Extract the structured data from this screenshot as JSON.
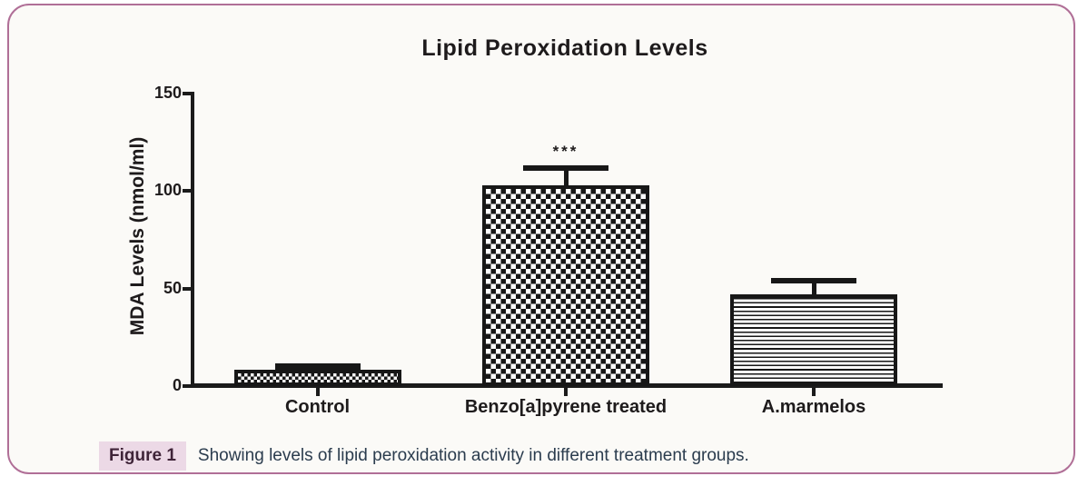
{
  "caption": {
    "label": "Figure 1",
    "text": "Showing levels of lipid peroxidation activity in different treatment groups."
  },
  "colors": {
    "panel_border": "#b06f97",
    "caption_highlight": "#ecd9e6",
    "caption_label_text": "#3f2438",
    "caption_text": "#2b3c4e",
    "ink": "#1b1b1b"
  },
  "chart_data": {
    "type": "bar",
    "title": "Lipid Peroxidation Levels",
    "xlabel": "",
    "ylabel": "MDA Levels (nmol/ml)",
    "categories": [
      "Control",
      "Benzo[a]pyrene treated",
      "A.marmelos"
    ],
    "values": [
      8.5,
      103,
      47
    ],
    "error_upper": [
      1.5,
      9,
      7
    ],
    "significance": [
      "",
      "***",
      ""
    ],
    "bar_patterns": [
      "fine-checkerboard",
      "checkerboard",
      "horizontal-lines"
    ],
    "ylim": [
      0,
      150
    ],
    "yticks": [
      0,
      50,
      100,
      150
    ],
    "grid": false,
    "legend": false,
    "bar_fill": "pattern-black-on-white",
    "error_bars": "upper-only-with-cap"
  }
}
